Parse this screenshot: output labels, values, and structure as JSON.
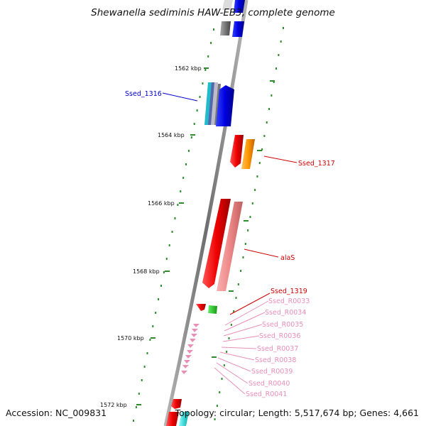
{
  "title": "Shewanella sediminis HAW-EB3, complete genome",
  "accession_text": "Accession: NC_009831",
  "topology_text": "Topology: circular; Length: 5,517,674 bp; Genes: 4,661",
  "colors": {
    "backbone": "#8a8a8a",
    "tick": "#2e8b2e",
    "label_blue": "#0000cc",
    "label_red": "#cc0000",
    "label_pink": "#e88fb8"
  },
  "kbp_labels": [
    "1562 kbp",
    "1564 kbp",
    "1566 kbp",
    "1568 kbp",
    "1570 kbp",
    "1572 kbp"
  ],
  "genes": [
    {
      "name": "Ssed_1316",
      "color": "blue"
    },
    {
      "name": "Ssed_1317",
      "color": "red"
    },
    {
      "name": "alaS",
      "color": "red"
    },
    {
      "name": "Ssed_1319",
      "color": "red"
    },
    {
      "name": "Ssed_R0033",
      "color": "pink"
    },
    {
      "name": "Ssed_R0034",
      "color": "pink"
    },
    {
      "name": "Ssed_R0035",
      "color": "pink"
    },
    {
      "name": "Ssed_R0036",
      "color": "pink"
    },
    {
      "name": "Ssed_R0037",
      "color": "pink"
    },
    {
      "name": "Ssed_R0038",
      "color": "pink"
    },
    {
      "name": "Ssed_R0039",
      "color": "pink"
    },
    {
      "name": "Ssed_R0040",
      "color": "pink"
    },
    {
      "name": "Ssed_R0041",
      "color": "pink"
    }
  ]
}
